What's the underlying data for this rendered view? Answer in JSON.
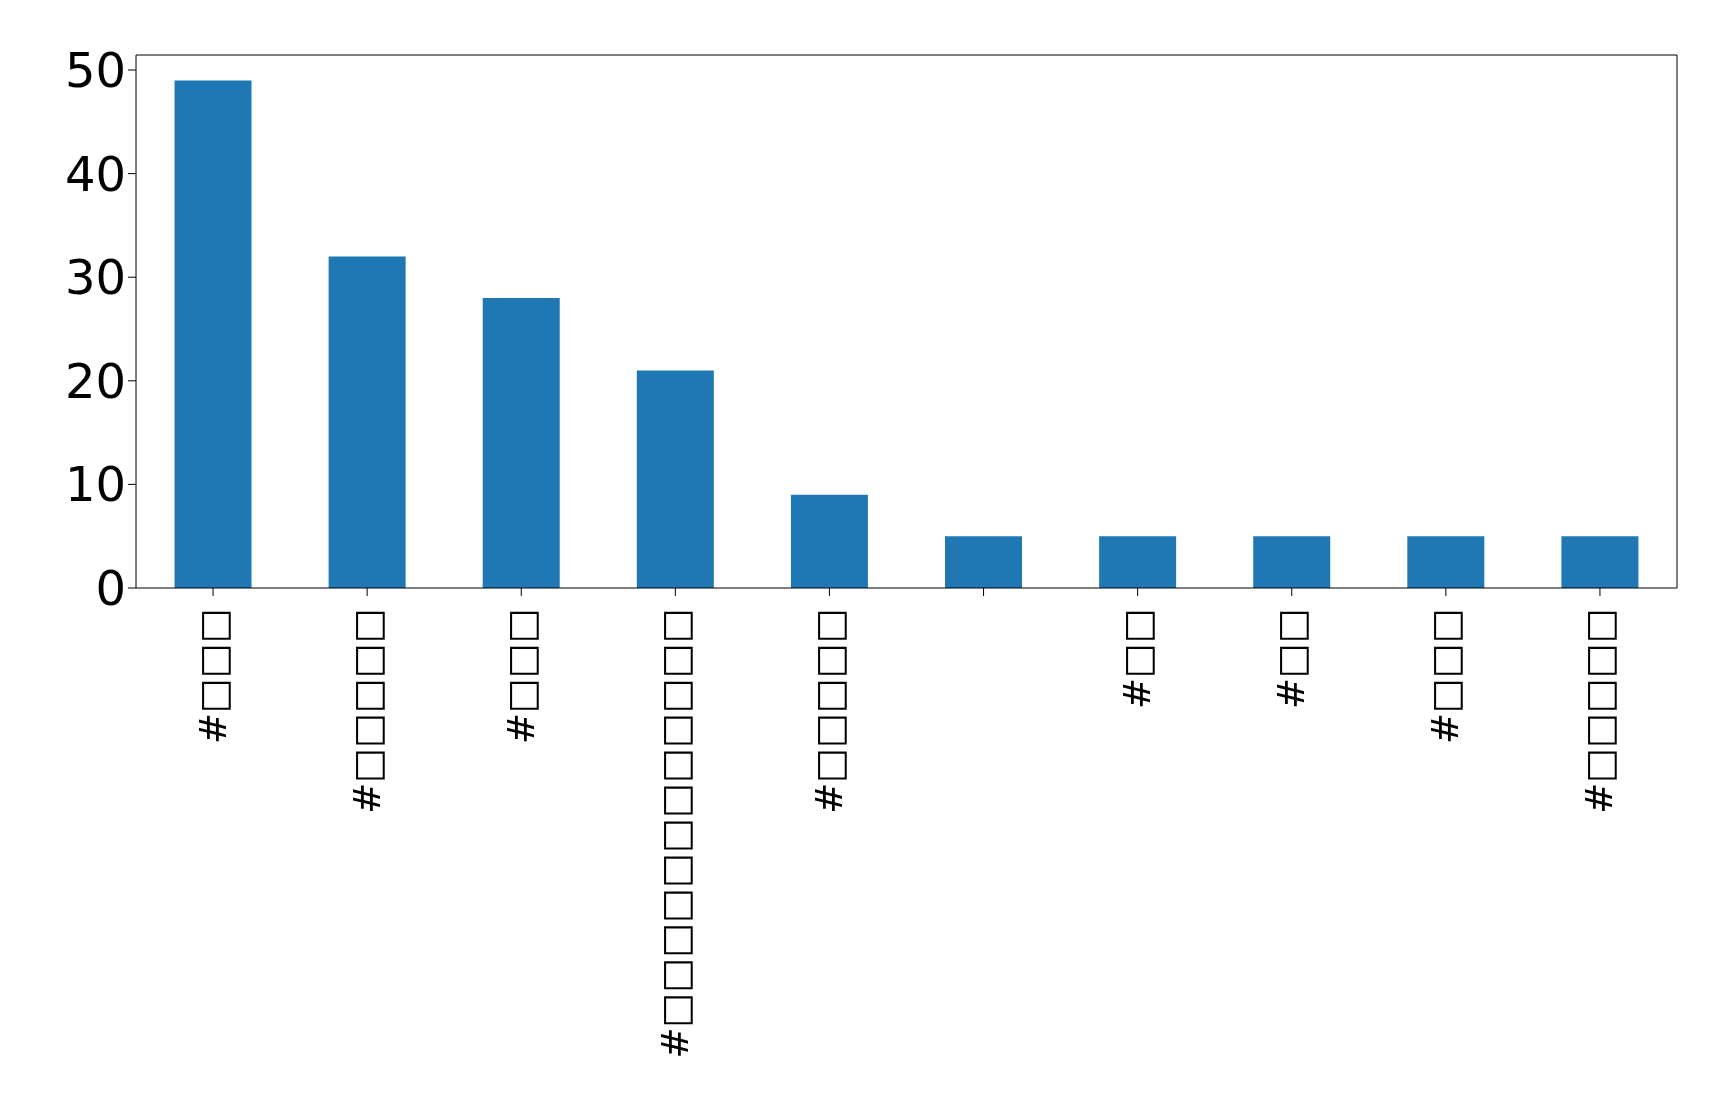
{
  "chart_data": {
    "type": "bar",
    "categories": [
      "#□□□",
      "#□□□□□",
      "#□□□",
      "#□□□□□□□□□□□□",
      "#□□□□□",
      null,
      "#□□",
      "#□□",
      "#□□□",
      "#□□□□□"
    ],
    "values": [
      49,
      32,
      28,
      21,
      9,
      5,
      5,
      5,
      5,
      5
    ],
    "color": "#1f77b4",
    "ylim": [
      0,
      51.45
    ],
    "yticks": [
      0,
      10,
      20,
      30,
      40,
      50
    ],
    "grid": false,
    "legend": false
  }
}
